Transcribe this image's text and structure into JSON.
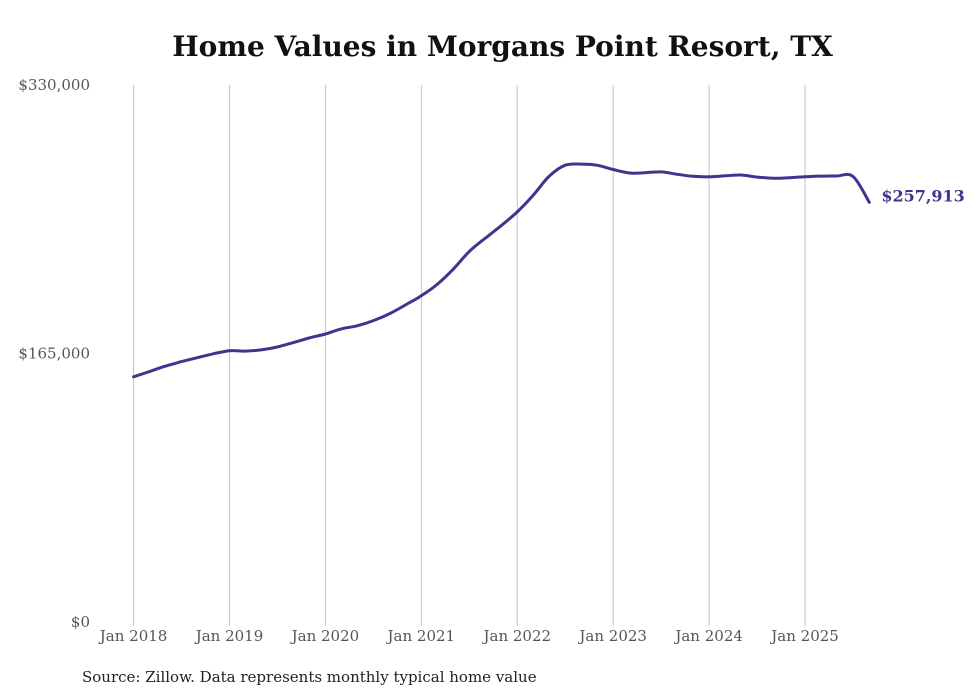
{
  "chart_data": {
    "type": "line",
    "title": "Home Values in Morgans Point Resort, TX",
    "xlabel": "",
    "ylabel": "",
    "ylim": [
      0,
      330000
    ],
    "yticks": [
      {
        "value": 0,
        "label": "$0"
      },
      {
        "value": 165000,
        "label": "$165,000"
      },
      {
        "value": 330000,
        "label": "$330,000"
      }
    ],
    "xticks": [
      {
        "value": 2018.0,
        "label": "Jan 2018"
      },
      {
        "value": 2019.0,
        "label": "Jan 2019"
      },
      {
        "value": 2020.0,
        "label": "Jan 2020"
      },
      {
        "value": 2021.0,
        "label": "Jan 2021"
      },
      {
        "value": 2022.0,
        "label": "Jan 2022"
      },
      {
        "value": 2023.0,
        "label": "Jan 2023"
      },
      {
        "value": 2024.0,
        "label": "Jan 2024"
      },
      {
        "value": 2025.0,
        "label": "Jan 2025"
      }
    ],
    "xlim": [
      2017.4,
      2025.75
    ],
    "grid": "vertical",
    "series": [
      {
        "name": "Typical home value",
        "color": "#3d3590",
        "x": [
          2018.0,
          2018.17,
          2018.33,
          2018.5,
          2018.67,
          2018.83,
          2019.0,
          2019.17,
          2019.33,
          2019.5,
          2019.67,
          2019.83,
          2020.0,
          2020.17,
          2020.33,
          2020.5,
          2020.67,
          2020.83,
          2021.0,
          2021.17,
          2021.33,
          2021.5,
          2021.67,
          2021.83,
          2022.0,
          2022.17,
          2022.33,
          2022.5,
          2022.67,
          2022.83,
          2023.0,
          2023.17,
          2023.33,
          2023.5,
          2023.67,
          2023.83,
          2024.0,
          2024.17,
          2024.33,
          2024.5,
          2024.67,
          2024.83,
          2025.0,
          2025.17,
          2025.33,
          2025.5,
          2025.67
        ],
        "values": [
          150700,
          154000,
          157200,
          160000,
          162500,
          164800,
          166700,
          166500,
          167200,
          169000,
          171800,
          174500,
          177000,
          180200,
          182000,
          185200,
          189500,
          194700,
          200500,
          207700,
          216700,
          227700,
          236000,
          243500,
          252000,
          262500,
          273800,
          280700,
          281400,
          280700,
          278100,
          275900,
          276100,
          276600,
          275100,
          273900,
          273600,
          274200,
          274700,
          273400,
          272700,
          273000,
          273600,
          274000,
          274100,
          273800,
          257913
        ]
      }
    ],
    "end_label": "$257,913"
  },
  "footer": {
    "source": "Source: Zillow. Data represents monthly typical home value"
  }
}
